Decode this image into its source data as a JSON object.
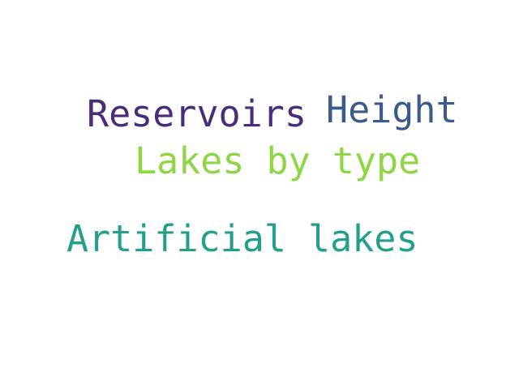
{
  "words": [
    {
      "text": "Reservoirs",
      "color": "#472d7b"
    },
    {
      "text": "Height",
      "color": "#3b5b8c"
    },
    {
      "text": "Lakes by type",
      "color": "#8ed645"
    },
    {
      "text": "Artificial lakes",
      "color": "#24a08a"
    }
  ],
  "background_color": "#ffffff"
}
